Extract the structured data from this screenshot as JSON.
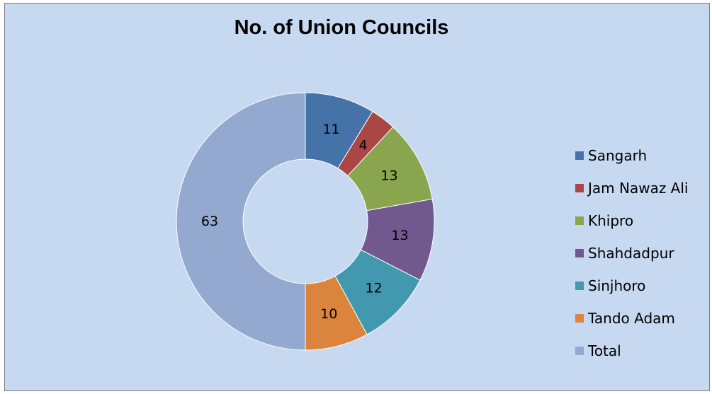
{
  "chart_data": {
    "type": "pie",
    "subtype": "donut",
    "title": "No. of Union Councils",
    "categories": [
      "Sangarh",
      "Jam Nawaz Ali",
      "Khipro",
      "Shahdadpur",
      "Sinjhoro",
      "Tando Adam",
      "Total"
    ],
    "values": [
      11,
      4,
      13,
      13,
      12,
      10,
      63
    ],
    "colors": [
      "#4572a7",
      "#aa4643",
      "#89a54e",
      "#71588f",
      "#4198af",
      "#db843d",
      "#93a9cf"
    ],
    "legend_position": "right"
  }
}
